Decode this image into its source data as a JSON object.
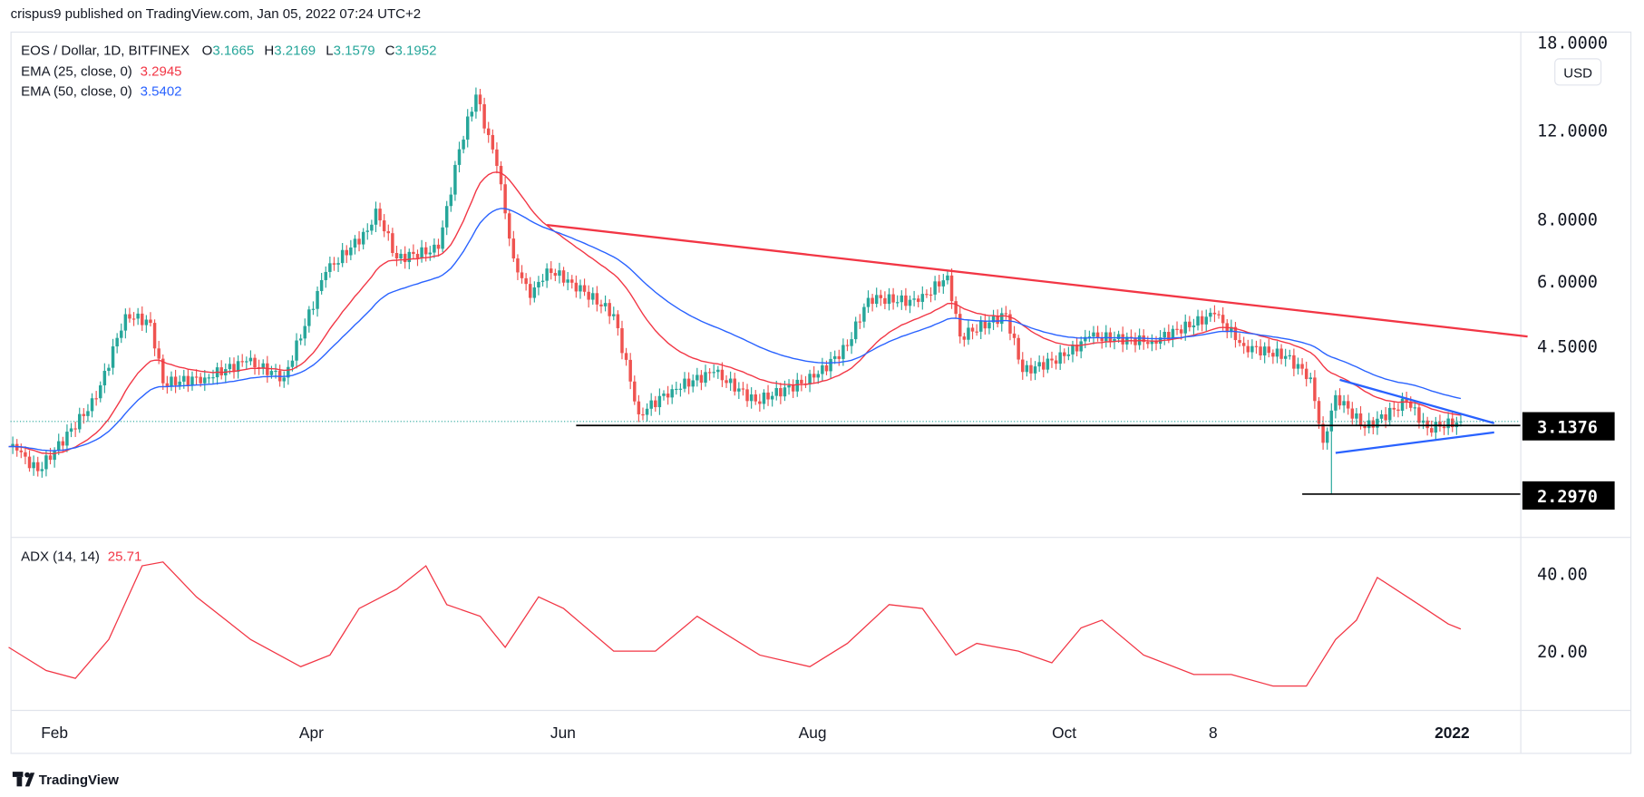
{
  "header": {
    "published": "crispus9 published on TradingView.com, Jan 05, 2022 07:24 UTC+2"
  },
  "legend": {
    "symbol": "EOS / Dollar, 1D, BITFINEX",
    "o_label": "O",
    "o": "3.1665",
    "h_label": "H",
    "h": "3.2169",
    "l_label": "L",
    "l": "3.1579",
    "c_label": "C",
    "c": "3.1952",
    "ema25_label": "EMA (25, close, 0)",
    "ema25": "3.2945",
    "ema50_label": "EMA (50, close, 0)",
    "ema50": "3.5402",
    "adx_label": "ADX (14, 14)",
    "adx": "25.71"
  },
  "currency": "USD",
  "price_axis": [
    "18.0000",
    "12.0000",
    "8.0000",
    "6.0000",
    "4.5000"
  ],
  "price_tags": [
    "3.1376",
    "2.2970"
  ],
  "adx_axis": [
    "40.00",
    "20.00"
  ],
  "time_axis": [
    "Feb",
    "Apr",
    "Jun",
    "Aug",
    "Oct",
    "8",
    "2022"
  ],
  "footer": {
    "brand": "TradingView"
  },
  "colors": {
    "up": "#26a69a",
    "down": "#ef5350",
    "ema25": "#f23645",
    "ema50": "#2962ff",
    "trend": "#f23645",
    "triangle": "#2962ff",
    "adx": "#f23645"
  },
  "chart_data": {
    "type": "candlestick",
    "title": "EOS / Dollar, 1D, BITFINEX",
    "y_scale": "log",
    "ylim": [
      2.0,
      18.0
    ],
    "close_points": [
      [
        "2021-01-21",
        2.85
      ],
      [
        "2021-01-23",
        2.8
      ],
      [
        "2021-01-28",
        2.55
      ],
      [
        "2021-02-01",
        2.8
      ],
      [
        "2021-02-11",
        3.55
      ],
      [
        "2021-02-18",
        5.2
      ],
      [
        "2021-02-24",
        5.0
      ],
      [
        "2021-02-27",
        3.8
      ],
      [
        "2021-03-09",
        3.9
      ],
      [
        "2021-03-19",
        4.2
      ],
      [
        "2021-03-28",
        3.9
      ],
      [
        "2021-04-07",
        6.3
      ],
      [
        "2021-04-17",
        7.6
      ],
      [
        "2021-04-19",
        8.4
      ],
      [
        "2021-04-24",
        6.7
      ],
      [
        "2021-05-04",
        7.0
      ],
      [
        "2021-05-09",
        11.0
      ],
      [
        "2021-05-13",
        14.1
      ],
      [
        "2021-05-18",
        10.2
      ],
      [
        "2021-05-22",
        6.7
      ],
      [
        "2021-05-26",
        5.6
      ],
      [
        "2021-05-30",
        6.4
      ],
      [
        "2021-06-05",
        6.0
      ],
      [
        "2021-06-15",
        5.2
      ],
      [
        "2021-06-21",
        3.3
      ],
      [
        "2021-06-29",
        3.7
      ],
      [
        "2021-07-09",
        4.0
      ],
      [
        "2021-07-19",
        3.5
      ],
      [
        "2021-08-02",
        3.9
      ],
      [
        "2021-08-10",
        4.5
      ],
      [
        "2021-08-15",
        5.6
      ],
      [
        "2021-08-27",
        5.5
      ],
      [
        "2021-09-03",
        6.2
      ],
      [
        "2021-09-06",
        4.7
      ],
      [
        "2021-09-17",
        5.2
      ],
      [
        "2021-09-21",
        4.0
      ],
      [
        "2021-10-01",
        4.3
      ],
      [
        "2021-10-07",
        4.7
      ],
      [
        "2021-10-22",
        4.6
      ],
      [
        "2021-11-06",
        5.2
      ],
      [
        "2021-11-13",
        4.5
      ],
      [
        "2021-11-23",
        4.3
      ],
      [
        "2021-11-29",
        3.9
      ],
      [
        "2021-12-02",
        2.9
      ],
      [
        "2021-12-05",
        3.6
      ],
      [
        "2021-12-12",
        3.1
      ],
      [
        "2021-12-22",
        3.5
      ],
      [
        "2021-12-27",
        3.1
      ],
      [
        "2022-01-04",
        3.1952
      ]
    ],
    "spike_low": {
      "date": "2021-12-04",
      "value": 2.297
    },
    "adx_points": [
      [
        "2021-01-21",
        21
      ],
      [
        "2021-01-30",
        15
      ],
      [
        "2021-02-06",
        13
      ],
      [
        "2021-02-14",
        23
      ],
      [
        "2021-02-22",
        42
      ],
      [
        "2021-02-27",
        43
      ],
      [
        "2021-03-07",
        34
      ],
      [
        "2021-03-20",
        23
      ],
      [
        "2021-04-01",
        16
      ],
      [
        "2021-04-08",
        19
      ],
      [
        "2021-04-15",
        31
      ],
      [
        "2021-04-24",
        36
      ],
      [
        "2021-05-01",
        42
      ],
      [
        "2021-05-06",
        32
      ],
      [
        "2021-05-14",
        29
      ],
      [
        "2021-05-20",
        21
      ],
      [
        "2021-05-28",
        34
      ],
      [
        "2021-06-03",
        31
      ],
      [
        "2021-06-15",
        20
      ],
      [
        "2021-06-25",
        20
      ],
      [
        "2021-07-05",
        29
      ],
      [
        "2021-07-20",
        19
      ],
      [
        "2021-08-01",
        16
      ],
      [
        "2021-08-10",
        22
      ],
      [
        "2021-08-20",
        32
      ],
      [
        "2021-08-28",
        31
      ],
      [
        "2021-09-05",
        19
      ],
      [
        "2021-09-10",
        22
      ],
      [
        "2021-09-20",
        20
      ],
      [
        "2021-09-28",
        17
      ],
      [
        "2021-10-05",
        26
      ],
      [
        "2021-10-10",
        28
      ],
      [
        "2021-10-20",
        19
      ],
      [
        "2021-11-01",
        14
      ],
      [
        "2021-11-10",
        14
      ],
      [
        "2021-11-20",
        11
      ],
      [
        "2021-11-28",
        11
      ],
      [
        "2021-12-05",
        23
      ],
      [
        "2021-12-10",
        28
      ],
      [
        "2021-12-15",
        39
      ],
      [
        "2021-12-25",
        32
      ],
      [
        "2022-01-01",
        27
      ],
      [
        "2022-01-04",
        25.71
      ]
    ],
    "adx_ylim": [
      5,
      50
    ],
    "drawings": {
      "resistance": [
        [
          "2021-05-30",
          7.8
        ],
        [
          "2022-01-20",
          4.7
        ]
      ],
      "support_3_1376": {
        "from": "2021-06-06",
        "value": 3.1376
      },
      "support_2_2970": {
        "from": "2021-11-27",
        "value": 2.297
      },
      "triangle_upper": [
        [
          "2021-12-06",
          3.86
        ],
        [
          "2022-01-12",
          3.17
        ]
      ],
      "triangle_lower": [
        [
          "2021-12-05",
          2.77
        ],
        [
          "2022-01-12",
          3.04
        ]
      ]
    }
  }
}
